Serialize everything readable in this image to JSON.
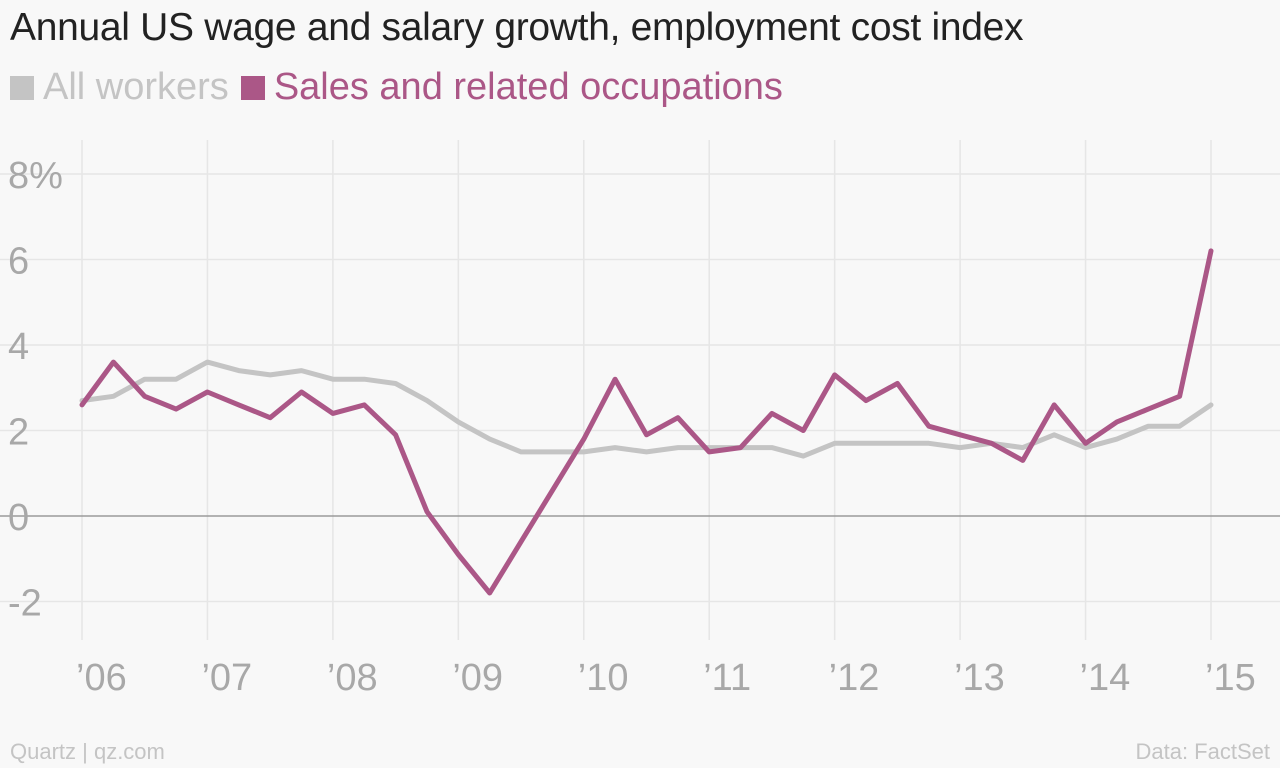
{
  "title": "Annual US wage and salary growth, employment cost index",
  "legend": [
    {
      "label": "All workers",
      "color": "#c4c4c4"
    },
    {
      "label": "Sales and related occupations",
      "color": "#ab5787"
    }
  ],
  "footer": {
    "source_left": "Quartz | qz.com",
    "source_right": "Data: FactSet"
  },
  "chart_data": {
    "type": "line",
    "title": "Annual US wage and salary growth, employment cost index",
    "xlabel": "",
    "ylabel": "",
    "y_ticks": [
      -2,
      0,
      2,
      4,
      6,
      8
    ],
    "y_tick_labels": [
      "-2",
      "0",
      "2",
      "4",
      "6",
      "8%"
    ],
    "ylim": [
      -2.8,
      8.6
    ],
    "x_ticks": [
      2006,
      2007,
      2008,
      2009,
      2010,
      2011,
      2012,
      2013,
      2014,
      2015
    ],
    "x_tick_labels": [
      "’06",
      "’07",
      "’08",
      "’09",
      "’10",
      "’11",
      "’12",
      "’13",
      "’14",
      "’15"
    ],
    "xlim": [
      2005.8,
      2015.3
    ],
    "grid": true,
    "legend_position": "top-left",
    "series": [
      {
        "name": "All workers",
        "color": "#c4c4c4",
        "x": [
          2006.0,
          2006.25,
          2006.5,
          2006.75,
          2007.0,
          2007.25,
          2007.5,
          2007.75,
          2008.0,
          2008.25,
          2008.5,
          2008.75,
          2009.0,
          2009.25,
          2009.5,
          2009.75,
          2010.0,
          2010.25,
          2010.5,
          2010.75,
          2011.0,
          2011.25,
          2011.5,
          2011.75,
          2012.0,
          2012.25,
          2012.5,
          2012.75,
          2013.0,
          2013.25,
          2013.5,
          2013.75,
          2014.0,
          2014.25,
          2014.5,
          2014.75,
          2015.0
        ],
        "values": [
          2.7,
          2.8,
          3.2,
          3.2,
          3.6,
          3.4,
          3.3,
          3.4,
          3.2,
          3.2,
          3.1,
          2.7,
          2.2,
          1.8,
          1.5,
          1.5,
          1.5,
          1.6,
          1.5,
          1.6,
          1.6,
          1.6,
          1.6,
          1.4,
          1.7,
          1.7,
          1.7,
          1.7,
          1.6,
          1.7,
          1.6,
          1.9,
          1.6,
          1.8,
          2.1,
          2.1,
          2.6
        ]
      },
      {
        "name": "Sales and related occupations",
        "color": "#ab5787",
        "x": [
          2006.0,
          2006.25,
          2006.5,
          2006.75,
          2007.0,
          2007.25,
          2007.5,
          2007.75,
          2008.0,
          2008.25,
          2008.5,
          2008.75,
          2009.0,
          2009.25,
          2009.5,
          2009.75,
          2010.0,
          2010.25,
          2010.5,
          2010.75,
          2011.0,
          2011.25,
          2011.5,
          2011.75,
          2012.0,
          2012.25,
          2012.5,
          2012.75,
          2013.0,
          2013.25,
          2013.5,
          2013.75,
          2014.0,
          2014.25,
          2014.5,
          2014.75,
          2015.0
        ],
        "values": [
          2.6,
          3.6,
          2.8,
          2.5,
          2.9,
          2.6,
          2.3,
          2.9,
          2.4,
          2.6,
          1.9,
          0.1,
          -0.9,
          -1.8,
          -0.6,
          0.6,
          1.8,
          3.2,
          1.9,
          2.3,
          1.5,
          1.6,
          2.4,
          2.0,
          3.3,
          2.7,
          3.1,
          2.1,
          1.9,
          1.7,
          1.3,
          2.6,
          1.7,
          2.2,
          2.5,
          2.8,
          6.2
        ]
      }
    ]
  }
}
